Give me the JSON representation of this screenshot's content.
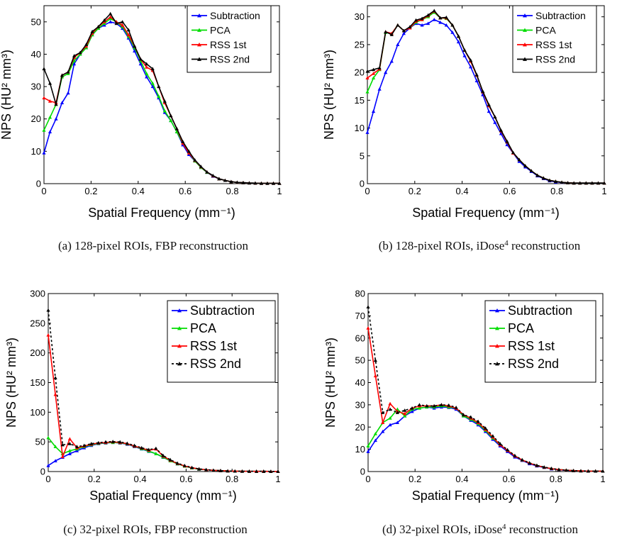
{
  "chart_data": [
    {
      "type": "line",
      "caption": "(a) 128-pixel ROIs, FBP reconstruction",
      "xlabel": "Spatial Frequency (mm⁻¹)",
      "ylabel": "NPS (HU² mm³)",
      "xlim": [
        0,
        1
      ],
      "ylim": [
        0,
        55
      ],
      "xticks": [
        0,
        0.2,
        0.4,
        0.6,
        0.8,
        1
      ],
      "yticks": [
        0,
        10,
        20,
        30,
        40,
        50
      ],
      "legend": "top-right",
      "x": [
        0,
        0.0256,
        0.0513,
        0.0769,
        0.1026,
        0.1282,
        0.1538,
        0.1795,
        0.2051,
        0.2308,
        0.2564,
        0.2821,
        0.3077,
        0.3333,
        0.359,
        0.3846,
        0.4103,
        0.4359,
        0.4615,
        0.4872,
        0.5128,
        0.5385,
        0.5641,
        0.5897,
        0.6154,
        0.641,
        0.6667,
        0.6923,
        0.7179,
        0.7436,
        0.7692,
        0.7949,
        0.8205,
        0.8462,
        0.8718,
        0.8974,
        0.9231,
        0.9487,
        0.9744,
        1.0
      ],
      "series": [
        {
          "name": "Subtraction",
          "color": "#0000ff",
          "dash": "",
          "values": [
            9.5,
            16,
            20,
            25,
            28,
            37,
            40,
            42,
            46,
            48,
            49,
            50,
            49.5,
            48,
            45,
            41,
            37,
            33,
            30,
            26.5,
            22,
            19.5,
            16,
            12,
            9,
            7,
            5,
            3.5,
            2.3,
            1.5,
            1,
            0.6,
            0.4,
            0.3,
            0.2,
            0.15,
            0.1,
            0.1,
            0.1,
            0.1
          ]
        },
        {
          "name": "PCA",
          "color": "#00dd00",
          "dash": "",
          "values": [
            16.5,
            20.5,
            24.5,
            33,
            34,
            38,
            40,
            42,
            46,
            48,
            49.5,
            51,
            50,
            48.5,
            45.5,
            42,
            38,
            34,
            31,
            27,
            22.5,
            19.5,
            16,
            12.5,
            9.5,
            7,
            5,
            3.5,
            2.4,
            1.5,
            1,
            0.6,
            0.4,
            0.3,
            0.2,
            0.15,
            0.1,
            0.1,
            0.1,
            0.1
          ]
        },
        {
          "name": "RSS 1st",
          "color": "#ff0000",
          "dash": "",
          "values": [
            26.5,
            25.5,
            25,
            33.5,
            34.5,
            39,
            40.5,
            42.5,
            46.5,
            48.5,
            50,
            51.5,
            50,
            49,
            46,
            42.5,
            38.5,
            36,
            35,
            30,
            25,
            21,
            17,
            12.5,
            9.5,
            7.2,
            5.2,
            3.6,
            2.4,
            1.5,
            1,
            0.6,
            0.4,
            0.3,
            0.2,
            0.15,
            0.1,
            0.1,
            0.1,
            0.1
          ]
        },
        {
          "name": "RSS 2nd",
          "color": "#000000",
          "dash": "",
          "values": [
            35.5,
            31,
            24.5,
            33.5,
            34.5,
            39.5,
            40.5,
            43,
            47,
            48.5,
            50.5,
            52.5,
            49.5,
            50,
            47.5,
            42.5,
            38.5,
            37,
            35.5,
            30,
            25.5,
            21,
            17,
            13,
            10,
            7.3,
            5.3,
            3.6,
            2.5,
            1.5,
            1,
            0.6,
            0.4,
            0.3,
            0.2,
            0.15,
            0.1,
            0.1,
            0.1,
            0.1
          ]
        }
      ]
    },
    {
      "type": "line",
      "caption": "(b) 128-pixel ROIs, iDose",
      "caption_sup": "4",
      "caption_tail": " reconstruction",
      "xlabel": "Spatial Frequency (mm⁻¹)",
      "ylabel": "NPS (HU² mm³)",
      "xlim": [
        0,
        1
      ],
      "ylim": [
        0,
        32
      ],
      "xticks": [
        0,
        0.2,
        0.4,
        0.6,
        0.8,
        1
      ],
      "yticks": [
        0,
        5,
        10,
        15,
        20,
        25,
        30
      ],
      "legend": "top-right",
      "x": [
        0,
        0.0256,
        0.0513,
        0.0769,
        0.1026,
        0.1282,
        0.1538,
        0.1795,
        0.2051,
        0.2308,
        0.2564,
        0.2821,
        0.3077,
        0.3333,
        0.359,
        0.3846,
        0.4103,
        0.4359,
        0.4615,
        0.4872,
        0.5128,
        0.5385,
        0.5641,
        0.5897,
        0.6154,
        0.641,
        0.6667,
        0.6923,
        0.7179,
        0.7436,
        0.7692,
        0.7949,
        0.8205,
        0.8462,
        0.8718,
        0.8974,
        0.9231,
        0.9487,
        0.9744,
        1.0
      ],
      "series": [
        {
          "name": "Subtraction",
          "color": "#0000ff",
          "dash": "",
          "values": [
            9.2,
            13,
            17,
            20,
            22,
            25,
            27,
            28,
            28.8,
            28.5,
            28.8,
            29.5,
            29,
            28.5,
            27.2,
            25.5,
            23,
            21,
            18.5,
            16,
            13,
            11,
            9,
            7,
            5.5,
            4,
            3,
            2.2,
            1.4,
            0.9,
            0.5,
            0.3,
            0.2,
            0.15,
            0.1,
            0.1,
            0.1,
            0.1,
            0.1,
            0.1
          ]
        },
        {
          "name": "PCA",
          "color": "#00dd00",
          "dash": "",
          "values": [
            16.5,
            19,
            20.5,
            27.2,
            27,
            28.5,
            27.5,
            28,
            29,
            29.5,
            30,
            30.8,
            29.8,
            29.7,
            28.5,
            26.5,
            24,
            22,
            19.5,
            16.5,
            14,
            12,
            9.5,
            7.5,
            5.5,
            4.3,
            3.2,
            2.3,
            1.5,
            1,
            0.6,
            0.4,
            0.25,
            0.15,
            0.1,
            0.1,
            0.1,
            0.1,
            0.1,
            0.1
          ]
        },
        {
          "name": "RSS 1st",
          "color": "#ff0000",
          "dash": "",
          "values": [
            19,
            19.8,
            20.6,
            27.3,
            27,
            28.5,
            27.5,
            28,
            29.2,
            29.5,
            30.2,
            31,
            29.8,
            29.8,
            28.5,
            26.5,
            24,
            22,
            19.5,
            16.5,
            14,
            12,
            9.5,
            7.5,
            5.5,
            4.3,
            3.2,
            2.3,
            1.5,
            1,
            0.6,
            0.4,
            0.25,
            0.15,
            0.1,
            0.1,
            0.1,
            0.1,
            0.1,
            0.1
          ]
        },
        {
          "name": "RSS 2nd",
          "color": "#000000",
          "dash": "",
          "values": [
            20.2,
            20.5,
            20.8,
            27.3,
            26.8,
            28.5,
            27.5,
            28.2,
            29.4,
            29.7,
            30.3,
            31.1,
            29.8,
            29.9,
            28.5,
            26.5,
            24,
            22.2,
            19.6,
            16.6,
            14.2,
            12,
            9.6,
            7.6,
            5.6,
            4.3,
            3.2,
            2.3,
            1.5,
            1,
            0.6,
            0.4,
            0.25,
            0.15,
            0.1,
            0.1,
            0.1,
            0.1,
            0.1,
            0.1
          ]
        }
      ]
    },
    {
      "type": "line",
      "caption": "(c) 32-pixel ROIs, FBP reconstruction",
      "xlabel": "Spatial Frequency (mm⁻¹)",
      "ylabel": "NPS (HU² mm³)",
      "xlim": [
        0,
        1
      ],
      "ylim": [
        0,
        300
      ],
      "xticks": [
        0,
        0.2,
        0.4,
        0.6,
        0.8,
        1
      ],
      "yticks": [
        0,
        50,
        100,
        150,
        200,
        250,
        300
      ],
      "legend": "top-right",
      "x": [
        0,
        0.0313,
        0.0625,
        0.0938,
        0.125,
        0.1563,
        0.1875,
        0.2188,
        0.25,
        0.2813,
        0.3125,
        0.3438,
        0.375,
        0.4063,
        0.4375,
        0.4688,
        0.5,
        0.5313,
        0.5625,
        0.5938,
        0.625,
        0.6563,
        0.6875,
        0.7188,
        0.75,
        0.7813,
        0.8125,
        0.8438,
        0.875,
        0.9063,
        0.9375,
        0.9688,
        1.0
      ],
      "series": [
        {
          "name": "Subtraction",
          "color": "#0000ff",
          "dash": "",
          "values": [
            10,
            18,
            24,
            30,
            35,
            40,
            44,
            47,
            48,
            49,
            48,
            46,
            42,
            38,
            34,
            30,
            24,
            18,
            13,
            9,
            6,
            4,
            3,
            2,
            1.5,
            1,
            0.7,
            0.5,
            0.4,
            0.3,
            0.3,
            0.2,
            0.2
          ]
        },
        {
          "name": "PCA",
          "color": "#00dd00",
          "dash": "",
          "values": [
            57,
            42,
            30,
            35,
            38,
            42,
            45,
            47.5,
            48.5,
            49,
            48.5,
            46.5,
            42.5,
            38.5,
            34.5,
            30,
            24.5,
            18,
            13,
            9,
            6,
            4,
            3,
            2,
            1.5,
            1,
            0.7,
            0.5,
            0.4,
            0.3,
            0.3,
            0.2,
            0.2
          ]
        },
        {
          "name": "RSS 1st",
          "color": "#ff0000",
          "dash": "",
          "values": [
            230,
            130,
            25,
            55,
            40,
            43,
            46,
            48,
            49,
            50,
            49,
            47,
            43,
            39.5,
            36,
            38,
            26,
            19,
            13.5,
            9.5,
            6.5,
            4.3,
            3,
            2,
            1.5,
            1,
            0.7,
            0.5,
            0.4,
            0.3,
            0.3,
            0.2,
            0.2
          ]
        },
        {
          "name": "RSS 2nd",
          "color": "#000000",
          "dash": "3,3",
          "values": [
            272,
            158,
            45,
            47,
            42,
            44,
            47,
            48.5,
            50,
            50.5,
            50,
            47.5,
            44,
            40,
            37,
            39,
            27,
            20,
            14,
            10,
            6.8,
            4.5,
            3.2,
            2.1,
            1.5,
            1,
            0.7,
            0.5,
            0.4,
            0.3,
            0.3,
            0.2,
            0.2
          ]
        }
      ]
    },
    {
      "type": "line",
      "caption": "(d) 32-pixel ROIs, iDose",
      "caption_sup": "4",
      "caption_tail": " reconstruction",
      "xlabel": "Spatial Frequency (mm⁻¹)",
      "ylabel": "NPS (HU² mm³)",
      "xlim": [
        0,
        1
      ],
      "ylim": [
        0,
        80
      ],
      "xticks": [
        0,
        0.2,
        0.4,
        0.6,
        0.8,
        1
      ],
      "yticks": [
        0,
        10,
        20,
        30,
        40,
        50,
        60,
        70,
        80
      ],
      "legend": "top-right",
      "x": [
        0,
        0.0313,
        0.0625,
        0.0938,
        0.125,
        0.1563,
        0.1875,
        0.2188,
        0.25,
        0.2813,
        0.3125,
        0.3438,
        0.375,
        0.4063,
        0.4375,
        0.4688,
        0.5,
        0.5313,
        0.5625,
        0.5938,
        0.625,
        0.6563,
        0.6875,
        0.7188,
        0.75,
        0.7813,
        0.8125,
        0.8438,
        0.875,
        0.9063,
        0.9375,
        0.9688,
        1.0
      ],
      "series": [
        {
          "name": "Subtraction",
          "color": "#0000ff",
          "dash": "",
          "values": [
            9,
            14,
            18,
            21,
            22,
            25,
            27,
            28.5,
            29,
            28.5,
            29,
            28.8,
            28,
            25,
            23,
            21,
            18,
            14.5,
            11.5,
            9,
            6.5,
            5,
            3.5,
            2.5,
            1.8,
            1.2,
            0.8,
            0.5,
            0.4,
            0.3,
            0.2,
            0.2,
            0.2
          ]
        },
        {
          "name": "PCA",
          "color": "#00dd00",
          "dash": "",
          "values": [
            11.5,
            17,
            22,
            24,
            28,
            25,
            28,
            28.5,
            29,
            29,
            29.5,
            29,
            28.5,
            25,
            23.5,
            21.5,
            18.5,
            15,
            12,
            9.5,
            7,
            5.2,
            3.8,
            2.7,
            1.9,
            1.3,
            0.9,
            0.6,
            0.4,
            0.3,
            0.2,
            0.2,
            0.2
          ]
        },
        {
          "name": "RSS 1st",
          "color": "#ff0000",
          "dash": "",
          "values": [
            64.5,
            43,
            22,
            30.5,
            27,
            26,
            28.5,
            29.5,
            29.5,
            29.5,
            30,
            29.5,
            28.5,
            25.5,
            24,
            22,
            19,
            15.5,
            12,
            9.5,
            7,
            5.2,
            3.8,
            2.7,
            1.9,
            1.3,
            0.9,
            0.6,
            0.4,
            0.3,
            0.2,
            0.2,
            0.2
          ]
        },
        {
          "name": "RSS 2nd",
          "color": "#000000",
          "dash": "3,3",
          "values": [
            74,
            50,
            26.5,
            28,
            26.5,
            27.5,
            28.5,
            30,
            29.5,
            29.5,
            30,
            29.8,
            28.8,
            25.5,
            24.5,
            22.5,
            19.5,
            16,
            12.5,
            9.8,
            7.2,
            5.3,
            3.9,
            2.8,
            2,
            1.4,
            0.9,
            0.6,
            0.4,
            0.3,
            0.2,
            0.2,
            0.2
          ]
        }
      ]
    }
  ]
}
